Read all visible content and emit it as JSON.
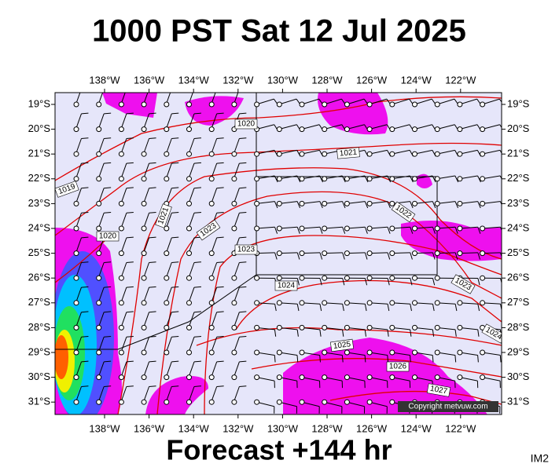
{
  "title": "1000 PST Sat 12 Jul 2025",
  "longitude_labels": [
    "138°W",
    "136°W",
    "134°W",
    "132°W",
    "130°W",
    "128°W",
    "126°W",
    "124°W",
    "122°W"
  ],
  "latitude_labels": [
    "19°S",
    "20°S",
    "21°S",
    "22°S",
    "23°S",
    "24°S",
    "25°S",
    "26°S",
    "27°S",
    "28°S",
    "29°S",
    "30°S",
    "31°S"
  ],
  "isobar_labels": [
    "1020",
    "1021",
    "1019",
    "1021",
    "1022",
    "1020",
    "1023",
    "1023",
    "1024",
    "1023",
    "1025",
    "1026",
    "1027",
    "1024"
  ],
  "copyright": "Copyright metvuw.com",
  "footer": "Forecast +144 hr",
  "corner_label": "IM2"
}
